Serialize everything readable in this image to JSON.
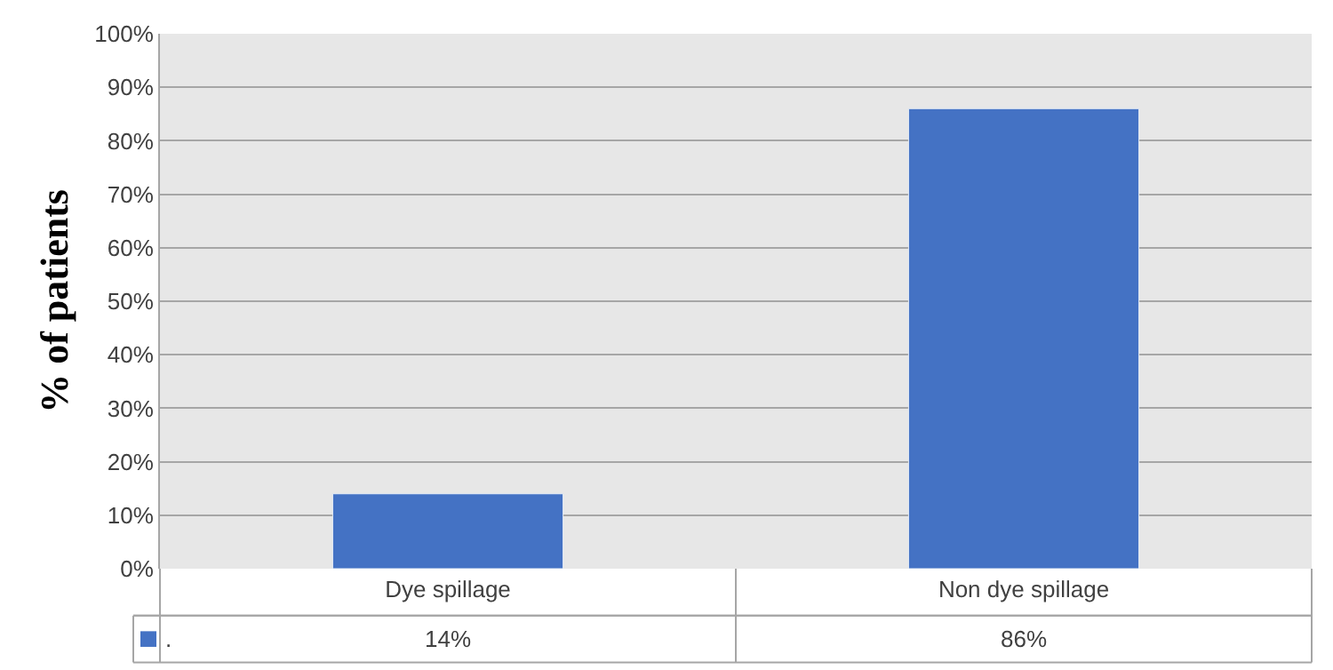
{
  "chart_data": {
    "type": "bar",
    "ylabel": "% of patients",
    "categories": [
      "Dye spillage",
      "Non dye spillage"
    ],
    "series": [
      {
        "name": ".",
        "color": "#4472c4",
        "values": [
          14,
          86
        ],
        "value_labels": [
          "14%",
          "86%"
        ]
      }
    ],
    "ylim": [
      0,
      100
    ],
    "yticks": [
      {
        "value": 0,
        "label": "0%"
      },
      {
        "value": 10,
        "label": "10%"
      },
      {
        "value": 20,
        "label": "20%"
      },
      {
        "value": 30,
        "label": "30%"
      },
      {
        "value": 40,
        "label": "40%"
      },
      {
        "value": 50,
        "label": "50%"
      },
      {
        "value": 60,
        "label": "60%"
      },
      {
        "value": 70,
        "label": "70%"
      },
      {
        "value": 80,
        "label": "80%"
      },
      {
        "value": 90,
        "label": "90%"
      },
      {
        "value": 100,
        "label": "100%"
      }
    ],
    "grid": "y"
  }
}
